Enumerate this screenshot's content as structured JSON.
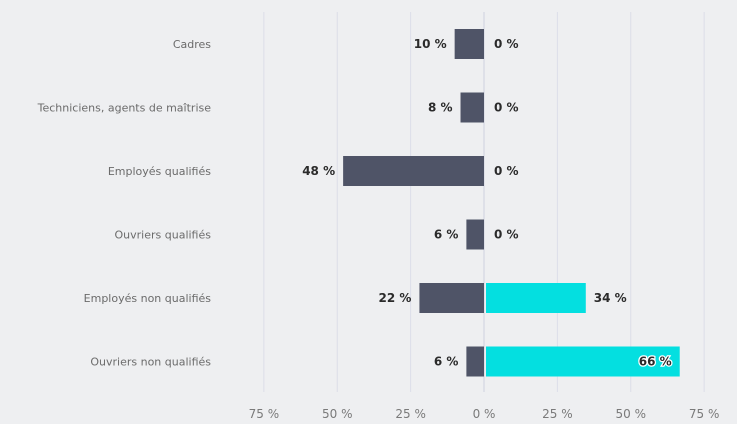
{
  "chart_data": {
    "type": "bar",
    "orientation": "horizontal",
    "layout": "butterfly",
    "categories": [
      "Cadres",
      "Techniciens, agents de maîtrise",
      "Employés qualifiés",
      "Ouvriers qualifiés",
      "Employés non qualifiés",
      "Ouvriers non qualifiés"
    ],
    "series": [
      {
        "side": "left",
        "color": "#4f5467",
        "values": [
          10,
          8,
          48,
          6,
          22,
          6
        ]
      },
      {
        "side": "right",
        "color": "#04dfe0",
        "values": [
          0,
          0,
          0,
          0,
          34,
          66
        ]
      }
    ],
    "value_suffix": " %",
    "xlim": [
      -75,
      75
    ],
    "ticks": [
      -75,
      -50,
      -25,
      0,
      25,
      50,
      75
    ],
    "tick_labels": [
      "75 %",
      "50 %",
      "25 %",
      "0 %",
      "25 %",
      "50 %",
      "75 %"
    ],
    "grid": true,
    "title": "",
    "xlabel": "",
    "ylabel": ""
  }
}
